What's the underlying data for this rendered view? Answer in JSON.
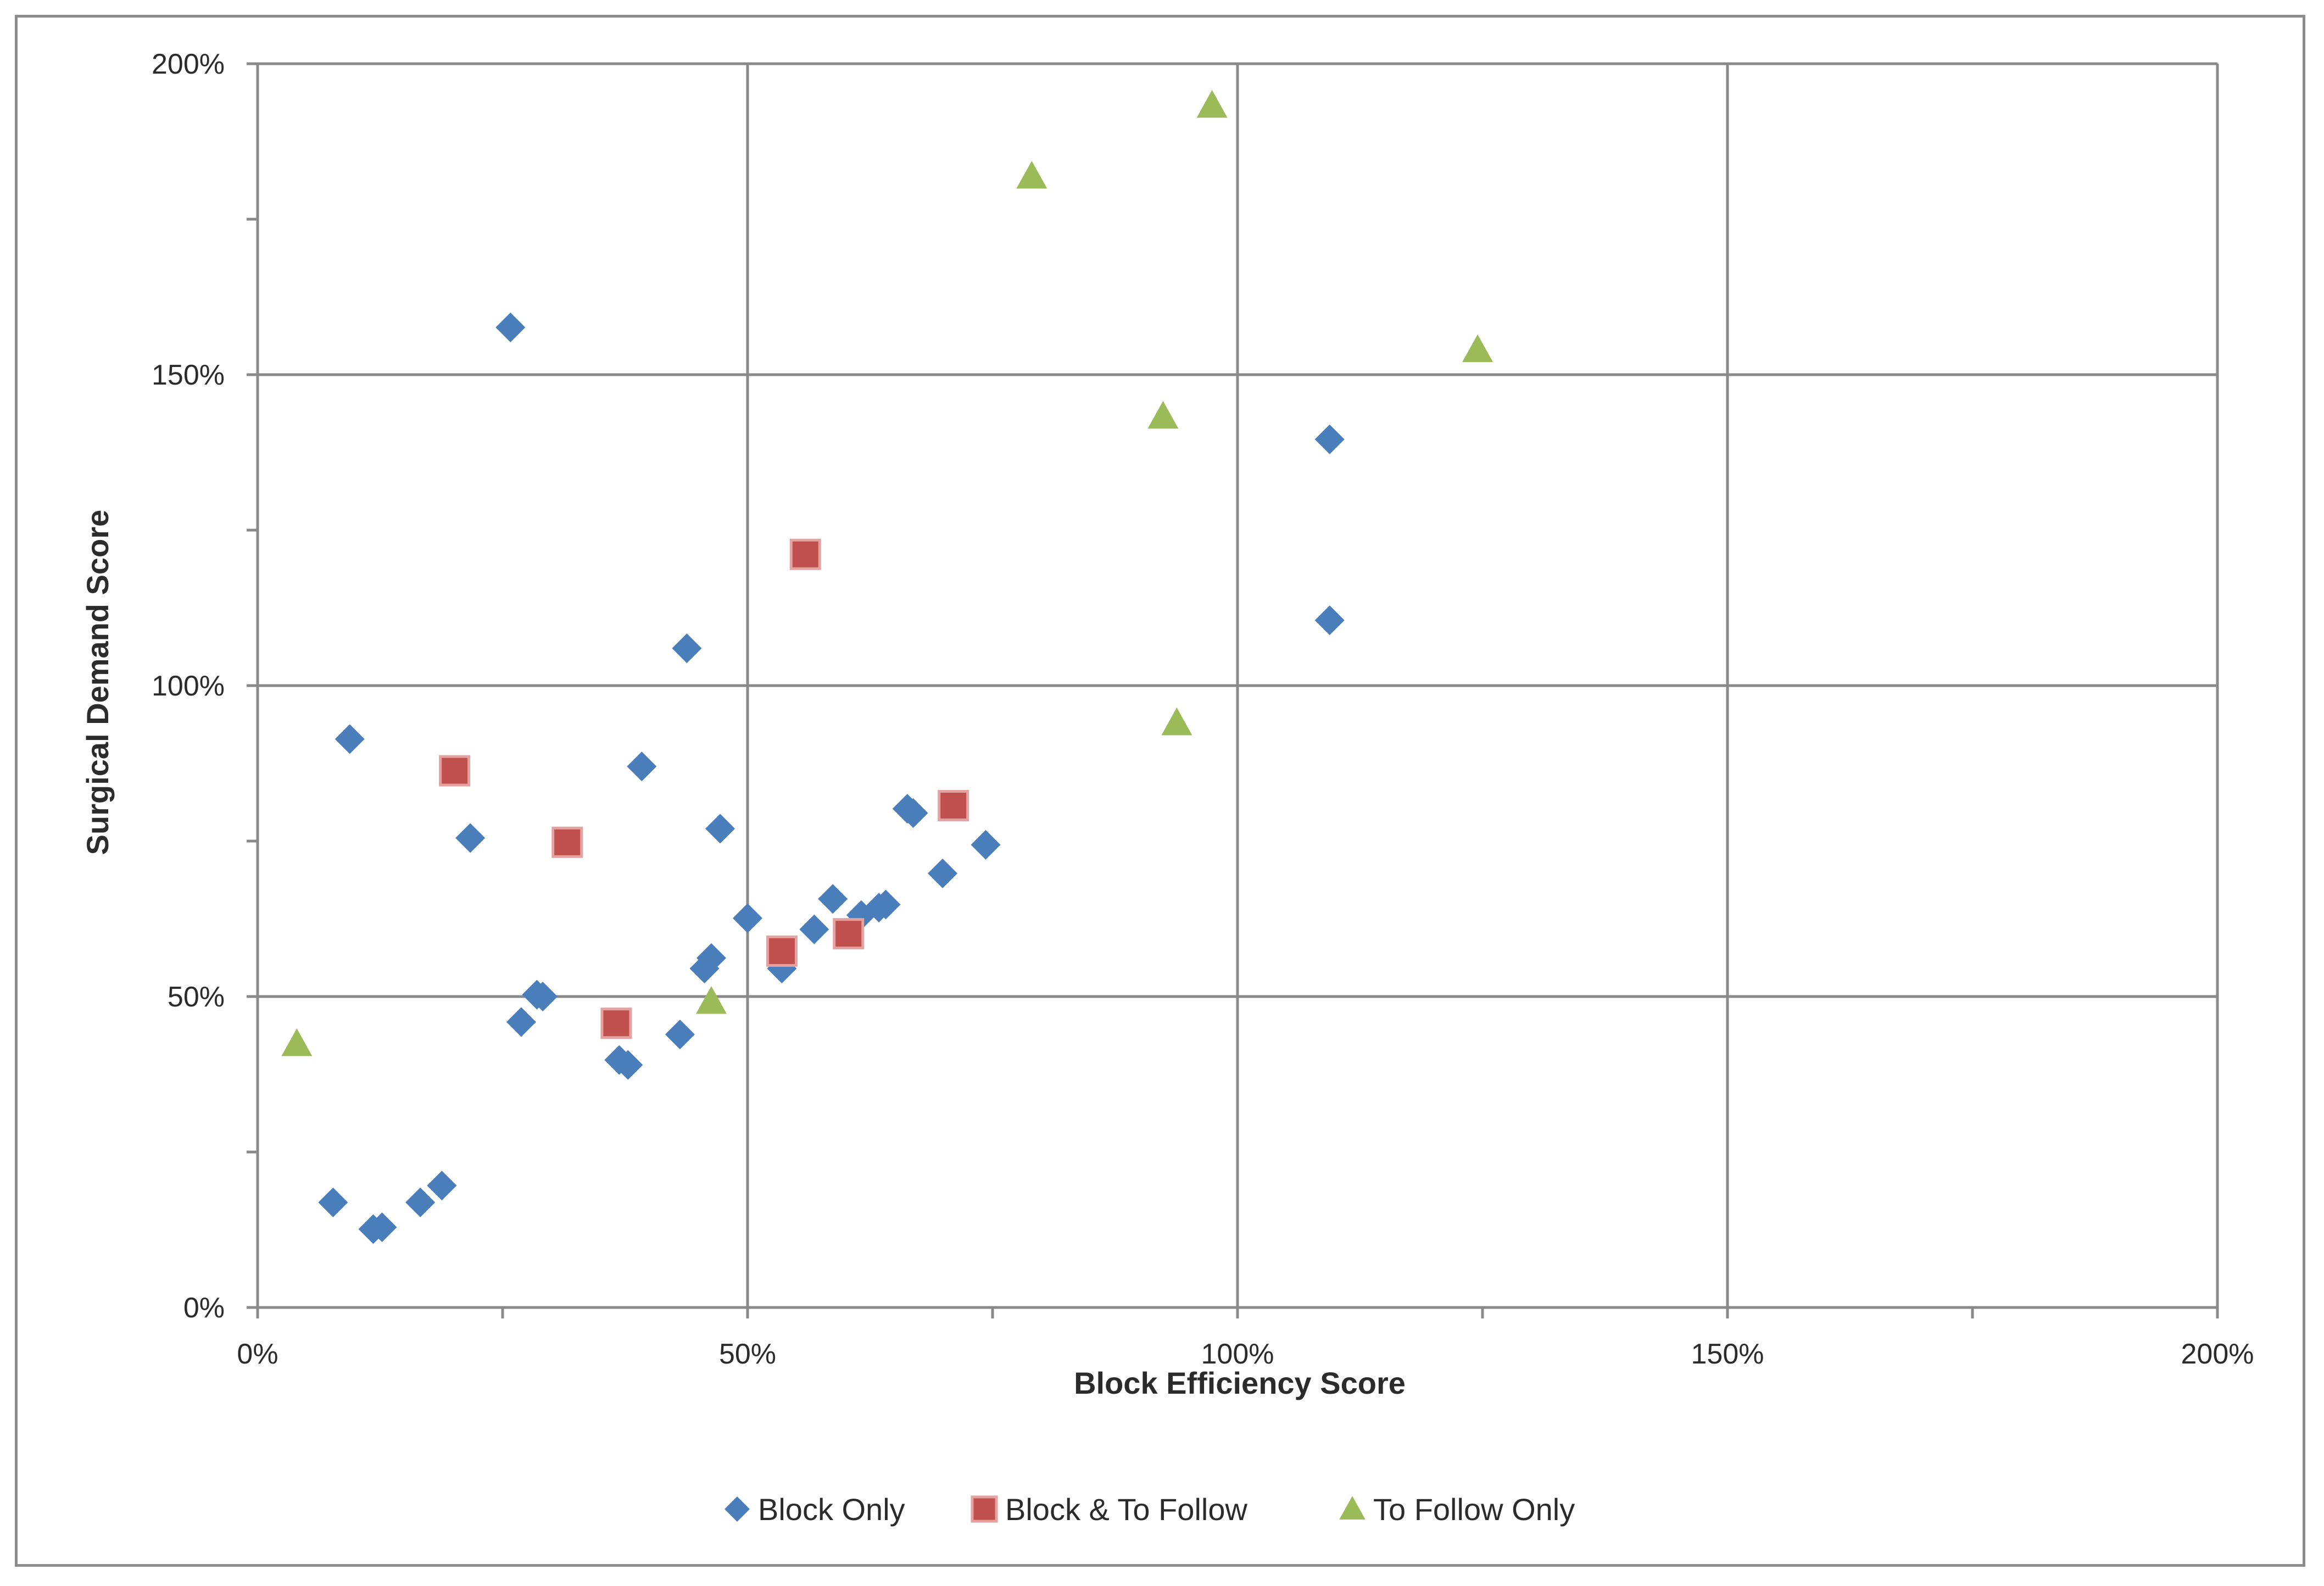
{
  "chart_data": {
    "type": "scatter",
    "title": "",
    "xlabel": "Block Efficiency Score",
    "ylabel": "Surgical Demand Score",
    "xlim": [
      0,
      200
    ],
    "ylim": [
      0,
      200
    ],
    "x_ticks": [
      "0%",
      "50%",
      "100%",
      "150%",
      "200%"
    ],
    "y_ticks": [
      "0%",
      "50%",
      "100%",
      "150%",
      "200%"
    ],
    "x_tick_values": [
      0,
      50,
      100,
      150,
      200
    ],
    "y_tick_values": [
      0,
      50,
      100,
      150,
      200
    ],
    "grid": true,
    "legend_position": "bottom",
    "series": [
      {
        "name": "Block Only",
        "marker": "diamond",
        "color": "#4a7ebb",
        "points": [
          [
            7.7,
            16.9
          ],
          [
            9.4,
            91.4
          ],
          [
            11.8,
            12.6
          ],
          [
            12.7,
            12.9
          ],
          [
            16.6,
            16.9
          ],
          [
            18.8,
            19.6
          ],
          [
            21.7,
            75.5
          ],
          [
            25.8,
            157.6
          ],
          [
            26.9,
            45.9
          ],
          [
            28.5,
            50.3
          ],
          [
            29.1,
            50.0
          ],
          [
            36.9,
            39.8
          ],
          [
            37.8,
            39.0
          ],
          [
            39.2,
            87.0
          ],
          [
            43.1,
            43.9
          ],
          [
            43.8,
            106.0
          ],
          [
            45.6,
            54.5
          ],
          [
            46.3,
            56.2
          ],
          [
            47.2,
            77.0
          ],
          [
            50.0,
            62.6
          ],
          [
            53.5,
            54.5
          ],
          [
            56.8,
            60.8
          ],
          [
            58.7,
            65.7
          ],
          [
            61.6,
            63.1
          ],
          [
            63.4,
            64.3
          ],
          [
            64.1,
            64.8
          ],
          [
            66.3,
            80.2
          ],
          [
            66.9,
            79.5
          ],
          [
            69.9,
            69.8
          ],
          [
            74.3,
            74.4
          ],
          [
            109.4,
            139.6
          ],
          [
            109.4,
            110.5
          ]
        ]
      },
      {
        "name": "Block & To Follow",
        "marker": "square",
        "color": "#c0504d",
        "points": [
          [
            20.1,
            86.3
          ],
          [
            31.6,
            74.8
          ],
          [
            36.6,
            45.7
          ],
          [
            53.5,
            57.3
          ],
          [
            55.9,
            121.1
          ],
          [
            60.3,
            60.1
          ],
          [
            71.0,
            80.7
          ]
        ]
      },
      {
        "name": "To Follow Only",
        "marker": "triangle",
        "color": "#9bbb59",
        "points": [
          [
            4.0,
            42.4
          ],
          [
            46.3,
            49.2
          ],
          [
            79.0,
            181.9
          ],
          [
            92.4,
            143.3
          ],
          [
            93.8,
            94.0
          ],
          [
            97.4,
            193.3
          ],
          [
            124.5,
            154.0
          ]
        ]
      }
    ]
  }
}
